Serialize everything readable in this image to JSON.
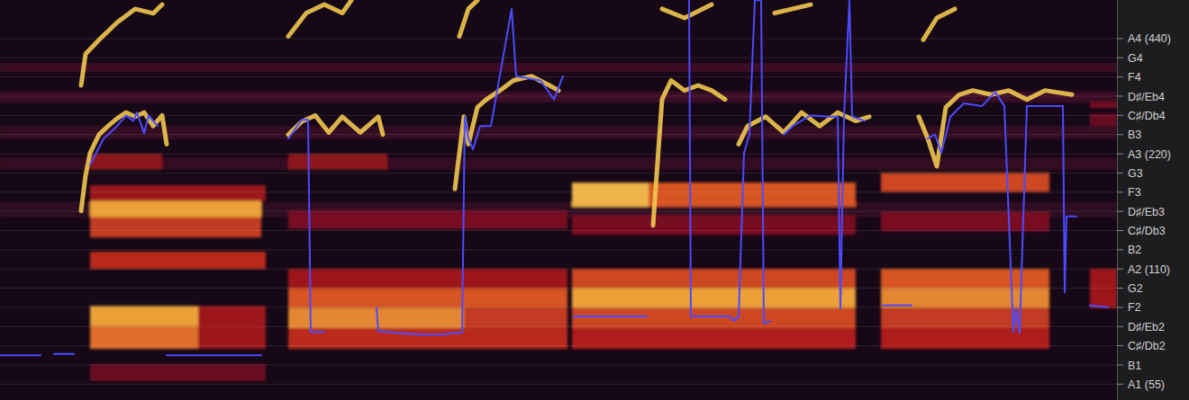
{
  "chart_data": {
    "type": "spectrogram",
    "log": "y",
    "grid": true,
    "tick_labels": "y",
    "xlim": [
      0,
      1240
    ],
    "ylim": [
      50,
      555
    ],
    "yticks": [
      {
        "value": 55,
        "label": "A1 (55)"
      },
      {
        "value": 61.74,
        "label": "B1"
      },
      {
        "value": 69.3,
        "label": "C♯/Db2"
      },
      {
        "value": 77.78,
        "label": "D♯/Eb2"
      },
      {
        "value": 87.31,
        "label": "F2"
      },
      {
        "value": 98,
        "label": "G2"
      },
      {
        "value": 110,
        "label": "A2 (110)"
      },
      {
        "value": 123.47,
        "label": "B2"
      },
      {
        "value": 138.59,
        "label": "C♯/Db3"
      },
      {
        "value": 155.56,
        "label": "D♯/Eb3"
      },
      {
        "value": 174.61,
        "label": "F3"
      },
      {
        "value": 196,
        "label": "G3"
      },
      {
        "value": 220,
        "label": "A3 (220)"
      },
      {
        "value": 246.94,
        "label": "B3"
      },
      {
        "value": 277.18,
        "label": "C♯/Db4"
      },
      {
        "value": 311.13,
        "label": "D♯/Eb4"
      },
      {
        "value": 349.23,
        "label": "F4"
      },
      {
        "value": 392,
        "label": "G4"
      },
      {
        "value": 440,
        "label": "A4 (440)"
      }
    ],
    "cells": [
      {
        "x": [
          0,
          1240
        ],
        "y": [
          360,
          380
        ],
        "value": 0.15
      },
      {
        "x": [
          0,
          1240
        ],
        "y": [
          300,
          320
        ],
        "value": 0.15
      },
      {
        "x": [
          0,
          1240
        ],
        "y": [
          240,
          260
        ],
        "value": 0.12
      },
      {
        "x": [
          0,
          1240
        ],
        "y": [
          200,
          215
        ],
        "value": 0.12
      },
      {
        "x": [
          0,
          1240
        ],
        "y": [
          150,
          165
        ],
        "value": 0.1
      },
      {
        "x": [
          100,
          290
        ],
        "y": [
          150,
          166
        ],
        "value": 0.85
      },
      {
        "x": [
          100,
          290
        ],
        "y": [
          133,
          150
        ],
        "value": 0.6
      },
      {
        "x": [
          100,
          295
        ],
        "y": [
          110,
          122
        ],
        "value": 0.55
      },
      {
        "x": [
          100,
          220
        ],
        "y": [
          78,
          88
        ],
        "value": 0.85
      },
      {
        "x": [
          100,
          220
        ],
        "y": [
          68,
          78
        ],
        "value": 0.75
      },
      {
        "x": [
          220,
          295
        ],
        "y": [
          68,
          88
        ],
        "value": 0.45
      },
      {
        "x": [
          100,
          295
        ],
        "y": [
          166,
          182
        ],
        "value": 0.45
      },
      {
        "x": [
          100,
          180
        ],
        "y": [
          200,
          220
        ],
        "value": 0.4
      },
      {
        "x": [
          100,
          295
        ],
        "y": [
          56,
          62
        ],
        "value": 0.3
      },
      {
        "x": [
          320,
          630
        ],
        "y": [
          87,
          98
        ],
        "value": 0.7
      },
      {
        "x": [
          320,
          515
        ],
        "y": [
          77,
          87
        ],
        "value": 0.8
      },
      {
        "x": [
          515,
          630
        ],
        "y": [
          77,
          87
        ],
        "value": 0.6
      },
      {
        "x": [
          320,
          630
        ],
        "y": [
          68,
          77
        ],
        "value": 0.55
      },
      {
        "x": [
          320,
          630
        ],
        "y": [
          98,
          110
        ],
        "value": 0.45
      },
      {
        "x": [
          320,
          630
        ],
        "y": [
          140,
          156
        ],
        "value": 0.35
      },
      {
        "x": [
          320,
          430
        ],
        "y": [
          200,
          220
        ],
        "value": 0.4
      },
      {
        "x": [
          635,
          720
        ],
        "y": [
          160,
          185
        ],
        "value": 0.9
      },
      {
        "x": [
          720,
          950
        ],
        "y": [
          160,
          185
        ],
        "value": 0.7
      },
      {
        "x": [
          635,
          950
        ],
        "y": [
          98,
          110
        ],
        "value": 0.65
      },
      {
        "x": [
          635,
          950
        ],
        "y": [
          87,
          98
        ],
        "value": 0.85
      },
      {
        "x": [
          635,
          950
        ],
        "y": [
          77,
          87
        ],
        "value": 0.65
      },
      {
        "x": [
          635,
          950
        ],
        "y": [
          68,
          77
        ],
        "value": 0.5
      },
      {
        "x": [
          635,
          950
        ],
        "y": [
          135,
          152
        ],
        "value": 0.35
      },
      {
        "x": [
          978,
          1165
        ],
        "y": [
          175,
          196
        ],
        "value": 0.65
      },
      {
        "x": [
          978,
          1165
        ],
        "y": [
          98,
          110
        ],
        "value": 0.7
      },
      {
        "x": [
          978,
          1165
        ],
        "y": [
          87,
          98
        ],
        "value": 0.8
      },
      {
        "x": [
          978,
          1165
        ],
        "y": [
          77,
          87
        ],
        "value": 0.6
      },
      {
        "x": [
          978,
          1165
        ],
        "y": [
          68,
          77
        ],
        "value": 0.5
      },
      {
        "x": [
          978,
          1165
        ],
        "y": [
          138,
          155
        ],
        "value": 0.35
      },
      {
        "x": [
          1210,
          1240
        ],
        "y": [
          87,
          110
        ],
        "value": 0.45
      },
      {
        "x": [
          1210,
          1240
        ],
        "y": [
          290,
          300
        ],
        "value": 0.35
      },
      {
        "x": [
          1210,
          1240
        ],
        "y": [
          260,
          280
        ],
        "value": 0.3
      }
    ],
    "series": [
      {
        "type": "line",
        "color": "#f0c850",
        "x": [
          90,
          95,
          100,
          110,
          120,
          130,
          140,
          150,
          160,
          170,
          180,
          185,
          188,
          90,
          95,
          110,
          130,
          150,
          170,
          180,
          188,
          320,
          335,
          350,
          365,
          380,
          400,
          420,
          425,
          460,
          505,
          515,
          520,
          530,
          540,
          555,
          570,
          590,
          610,
          620,
          318,
          320,
          340,
          360,
          380,
          390,
          450,
          510,
          520,
          530,
          700,
          725,
          735,
          745,
          760,
          775,
          790,
          805,
          812,
          820,
          830,
          850,
          870,
          890,
          910,
          930,
          950,
          965,
          730,
          735,
          760,
          790,
          820,
          860,
          900,
          1000,
          1020,
          1030,
          1040,
          1050,
          1065,
          1080,
          1100,
          1120,
          1140,
          1160,
          1190,
          1022,
          1025,
          1040,
          1060
        ],
        "values": [
          156,
          193,
          221,
          247,
          260,
          272,
          282,
          275,
          282,
          260,
          277,
          233,
          null,
          332,
          401,
          437,
          485,
          526,
          512,
          540,
          null,
          247,
          267,
          277,
          250,
          275,
          250,
          275,
          247,
          null,
          178,
          275,
          233,
          291,
          305,
          322,
          342,
          351,
          332,
          322,
          null,
          446,
          513,
          540,
          513,
          554,
          null,
          446,
          526,
          554,
          null,
          143,
          305,
          342,
          322,
          332,
          322,
          305,
          null,
          233,
          260,
          275,
          250,
          282,
          260,
          282,
          268,
          275,
          null,
          526,
          498,
          540,
          null,
          513,
          540,
          null,
          275,
          241,
          204,
          291,
          314,
          322,
          314,
          322,
          305,
          322,
          314,
          null,
          437,
          498,
          526
        ]
      },
      {
        "type": "line",
        "color": "#4b4bff",
        "x": [
          0,
          45,
          52,
          60,
          82,
          90,
          100,
          115,
          120,
          130,
          140,
          148,
          152,
          160,
          165,
          175,
          180,
          185,
          290,
          305,
          320,
          335,
          342,
          345,
          360,
          390,
          418,
          420,
          440,
          470,
          490,
          505,
          513,
          516,
          520,
          525,
          533,
          545,
          568,
          573,
          600,
          615,
          625,
          630,
          637,
          718,
          740,
          765,
          767,
          810,
          815,
          820,
          826,
          832,
          838,
          845,
          848,
          855,
          862,
          870,
          880,
          900,
          920,
          930,
          933,
          937,
          943,
          946,
          960,
          970,
          980,
          1012,
          1020,
          1030,
          1038,
          1045,
          1055,
          1070,
          1090,
          1105,
          1115,
          1125,
          1128,
          1132,
          1140,
          1160,
          1180,
          1182,
          1184,
          1195,
          1200,
          1210,
          1230
        ],
        "values": [
          65.4,
          65.4,
          null,
          66.0,
          66.0,
          null,
          206,
          241,
          247,
          260,
          277,
          268,
          282,
          249,
          277,
          260,
          null,
          65.4,
          65.4,
          null,
          241,
          270,
          270,
          75.3,
          75.3,
          null,
          87,
          75.7,
          74.9,
          74.1,
          74.1,
          74.9,
          74.9,
          275,
          241,
          226,
          260,
          260,
          526,
          351,
          342,
          305,
          351,
          null,
          82.7,
          82.7,
          null,
          554,
          82.7,
          82.7,
          80.5,
          82.7,
          221,
          247,
          554,
          554,
          79.2,
          80.4,
          null,
          247,
          260,
          277,
          275,
          275,
          86.8,
          275,
          554,
          275,
          268,
          null,
          88.3,
          88.3,
          null,
          241,
          247,
          221,
          275,
          298,
          293,
          319,
          293,
          75.3,
          86.8,
          74.9,
          293,
          293,
          293,
          95.5,
          151,
          151,
          null,
          88.3,
          87.3
        ]
      }
    ]
  }
}
